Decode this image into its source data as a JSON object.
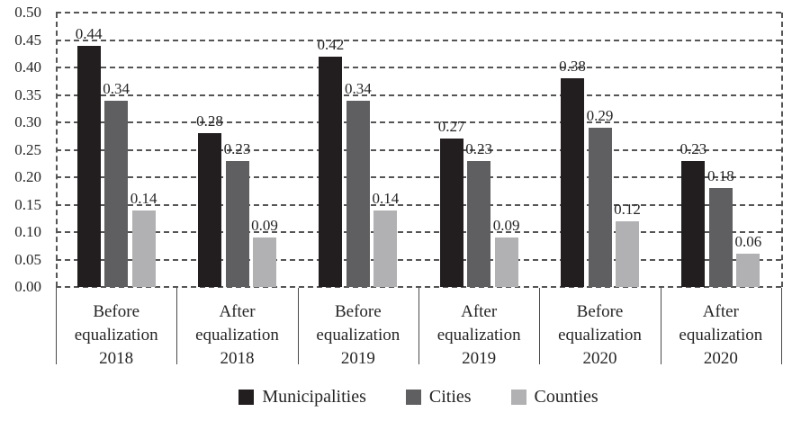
{
  "chart_data": {
    "type": "bar",
    "categories": [
      [
        "Before",
        "equalization",
        "2018"
      ],
      [
        "After",
        "equalization",
        "2018"
      ],
      [
        "Before",
        "equalization",
        "2019"
      ],
      [
        "After",
        "equalization",
        "2019"
      ],
      [
        "Before",
        "equalization",
        "2020"
      ],
      [
        "After",
        "equalization",
        "2020"
      ]
    ],
    "series": [
      {
        "name": "Municipalities",
        "color": "#221d1e",
        "values": [
          0.44,
          0.28,
          0.42,
          0.27,
          0.38,
          0.23
        ]
      },
      {
        "name": "Cities",
        "color": "#5f5f61",
        "values": [
          0.34,
          0.23,
          0.34,
          0.23,
          0.29,
          0.18
        ]
      },
      {
        "name": "Counties",
        "color": "#b1b1b3",
        "values": [
          0.14,
          0.09,
          0.14,
          0.09,
          0.12,
          0.06
        ]
      }
    ],
    "title": "",
    "xlabel": "",
    "ylabel": "",
    "ylim": [
      0,
      0.5
    ],
    "ytick_step": 0.05,
    "ytick_labels": [
      "0.00",
      "0.05",
      "0.10",
      "0.15",
      "0.20",
      "0.25",
      "0.30",
      "0.35",
      "0.40",
      "0.45",
      "0.50"
    ],
    "value_labels_shown": true,
    "value_label_decimals": 2,
    "grid": "horizontal-dashed",
    "legend_position": "bottom-center"
  },
  "styles": {
    "grid_color": "#555555",
    "separator_color": "#4a4a4a",
    "text_color": "#252525",
    "background_color": "#ffffff"
  }
}
